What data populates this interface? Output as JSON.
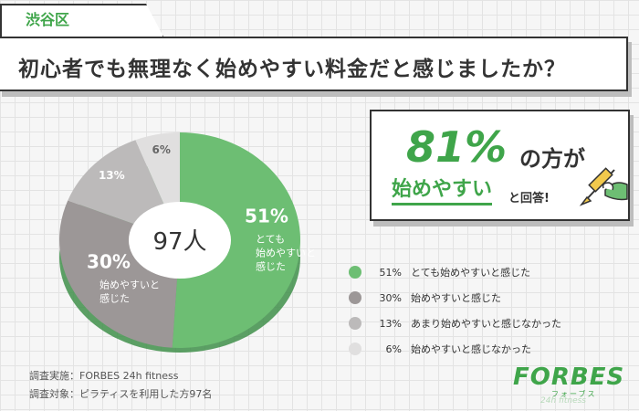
{
  "region_tag": "渋谷区",
  "question": "初心者でも無理なく始めやすい料金だと感じましたか？",
  "chart_data": {
    "type": "pie",
    "categories": [
      "とても始めやすいと感じた",
      "始めやすいと感じた",
      "あまり始めやすいと感じなかった",
      "始めやすいと感じなかった"
    ],
    "values": [
      51,
      30,
      13,
      6
    ],
    "value_labels": [
      "51%",
      "30%",
      "13%",
      "6%"
    ],
    "colors": [
      "#6dbe73",
      "#9c9797",
      "#bcbaba",
      "#e0dfdf"
    ],
    "center_label": "97人",
    "slice_texts": {
      "0": "とても\n始めやすいと\n感じた",
      "1": "始めやすいと\n感じた"
    }
  },
  "callout": {
    "percent": "81%",
    "suffix": "の方が",
    "answer": "始めやすい",
    "answer_suffix": "と回答!"
  },
  "legend": [
    {
      "pct": "51%",
      "label": "とても始めやすいと感じた",
      "color": "#6dbe73"
    },
    {
      "pct": "30%",
      "label": "始めやすいと感じた",
      "color": "#9c9797"
    },
    {
      "pct": "13%",
      "label": "あまり始めやすいと感じなかった",
      "color": "#bcbaba"
    },
    {
      "pct": "6%",
      "label": "始めやすいと感じなかった",
      "color": "#e0dfdf"
    }
  ],
  "footer": {
    "line1": "調査実施：FORBES 24h fitness",
    "line2": "調査対象：ピラティスを利用した方97名"
  },
  "logo": {
    "main": "FORBES",
    "sub": "フォーブス",
    "sub2": "24h fitness"
  }
}
